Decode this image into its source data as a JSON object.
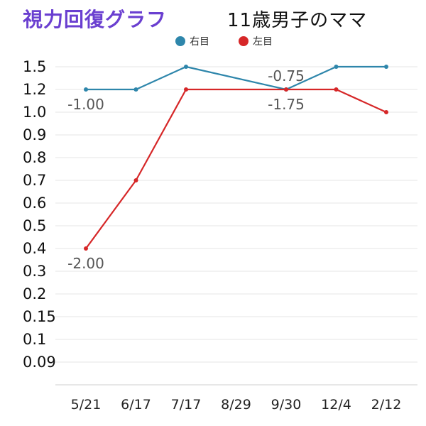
{
  "header": {
    "title": "視力回復グラフ",
    "subtitle": "11歳男子のママ"
  },
  "chart_data": {
    "type": "line",
    "title": "視力回復グラフ",
    "subtitle": "11歳男子のママ",
    "xlabel": "",
    "ylabel": "",
    "categories": [
      "5/21",
      "6/17",
      "7/17",
      "8/29",
      "9/30",
      "12/4",
      "2/12"
    ],
    "y_ticks": [
      "1.5",
      "1.2",
      "1.0",
      "0.9",
      "0.8",
      "0.7",
      "0.6",
      "0.5",
      "0.4",
      "0.3",
      "0.2",
      "0.15",
      "0.1",
      "0.09"
    ],
    "y_scale": "categorical (Japanese visual acuity steps, evenly spaced)",
    "grid": true,
    "legend_position": "top",
    "series": [
      {
        "name": "右目",
        "color": "#2e86ab",
        "x": [
          "5/21",
          "6/17",
          "7/17",
          "9/30",
          "12/4",
          "2/12"
        ],
        "values": [
          "1.2",
          "1.2",
          "1.5",
          "1.2",
          "1.5",
          "1.5"
        ]
      },
      {
        "name": "左目",
        "color": "#d62728",
        "x": [
          "5/21",
          "6/17",
          "7/17",
          "9/30",
          "12/4",
          "2/12"
        ],
        "values": [
          "0.4",
          "0.7",
          "1.2",
          "1.2",
          "1.2",
          "1.0"
        ]
      }
    ],
    "annotations": [
      {
        "text": "-1.00",
        "x": "5/21",
        "y": "1.2",
        "position": "below"
      },
      {
        "text": "-2.00",
        "x": "5/21",
        "y": "0.4",
        "position": "below"
      },
      {
        "text": "-0.75",
        "x": "9/30",
        "y": "1.2",
        "position": "above"
      },
      {
        "text": "-1.75",
        "x": "9/30",
        "y": "1.2",
        "position": "below"
      }
    ]
  }
}
